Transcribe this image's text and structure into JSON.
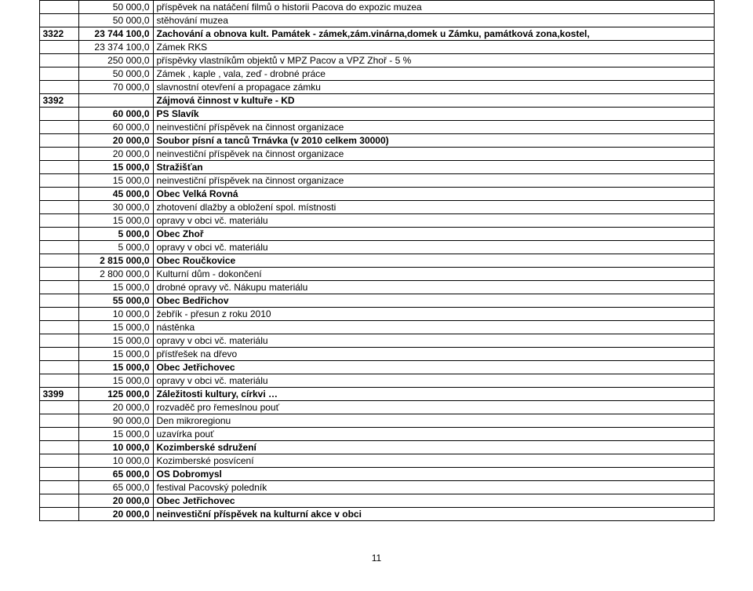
{
  "rows": [
    {
      "a": "",
      "b": "50 000,0",
      "c": "příspěvek na natáčení filmů o historii Pacova do expozic muzea",
      "bold": false
    },
    {
      "a": "",
      "b": "50 000,0",
      "c": "stěhování muzea",
      "bold": false
    },
    {
      "a": "3322",
      "b": "23 744 100,0",
      "c": "Zachování a obnova kult. Památek - zámek,zám.vinárna,domek u Zámku, památková zona,kostel,",
      "bold": true
    },
    {
      "a": "",
      "b": "23 374 100,0",
      "c": "Zámek RKS",
      "bold": false
    },
    {
      "a": "",
      "b": "250 000,0",
      "c": "příspěvky vlastníkům objektů v MPZ Pacov a VPZ Zhoř - 5 %",
      "bold": false
    },
    {
      "a": "",
      "b": "50 000,0",
      "c": "Zámek , kaple , vala, zeď - drobné práce",
      "bold": false
    },
    {
      "a": "",
      "b": "70 000,0",
      "c": "slavnostní otevření a propagace zámku",
      "bold": false
    },
    {
      "a": "3392",
      "b": "",
      "c": "Zájmová činnost v kultuře - KD",
      "bold": true
    },
    {
      "a": "",
      "b": "60 000,0",
      "c": "PS Slavík",
      "bold": true
    },
    {
      "a": "",
      "b": "60 000,0",
      "c": "neinvestiční příspěvek na činnost organizace",
      "bold": false
    },
    {
      "a": "",
      "b": "20 000,0",
      "c": "Soubor písní a tanců Trnávka (v 2010 celkem 30000)",
      "bold": true
    },
    {
      "a": "",
      "b": "20 000,0",
      "c": "neinvestiční příspěvek na činnost organizace",
      "bold": false
    },
    {
      "a": "",
      "b": "15 000,0",
      "c": "Stražišťan",
      "bold": true
    },
    {
      "a": "",
      "b": "15 000,0",
      "c": "neinvestiční příspěvek na činnost organizace",
      "bold": false
    },
    {
      "a": "",
      "b": "45 000,0",
      "c": "Obec Velká Rovná",
      "bold": true
    },
    {
      "a": "",
      "b": "30 000,0",
      "c": "zhotovení dlažby a obložení spol. místnosti",
      "bold": false
    },
    {
      "a": "",
      "b": "15 000,0",
      "c": "opravy v obci vč. materiálu",
      "bold": false
    },
    {
      "a": "",
      "b": "5 000,0",
      "c": "Obec Zhoř",
      "bold": true
    },
    {
      "a": "",
      "b": "5 000,0",
      "c": "opravy v obci vč. materiálu",
      "bold": false
    },
    {
      "a": "",
      "b": "2 815 000,0",
      "c": "Obec Roučkovice",
      "bold": true
    },
    {
      "a": "",
      "b": "2 800 000,0",
      "c": "Kulturní dům - dokončení",
      "bold": false
    },
    {
      "a": "",
      "b": "15 000,0",
      "c": "drobné opravy vč. Nákupu materiálu",
      "bold": false
    },
    {
      "a": "",
      "b": "55 000,0",
      "c": "Obec Bedřichov",
      "bold": true
    },
    {
      "a": "",
      "b": "10 000,0",
      "c": "žebřík - přesun z roku 2010",
      "bold": false
    },
    {
      "a": "",
      "b": "15 000,0",
      "c": "nástěnka",
      "bold": false
    },
    {
      "a": "",
      "b": "15 000,0",
      "c": "opravy v obci vč. materiálu",
      "bold": false
    },
    {
      "a": "",
      "b": "15 000,0",
      "c": "přístřešek na dřevo",
      "bold": false
    },
    {
      "a": "",
      "b": "15 000,0",
      "c": "Obec Jetřichovec",
      "bold": true
    },
    {
      "a": "",
      "b": "15 000,0",
      "c": "opravy v obci vč. materiálu",
      "bold": false
    },
    {
      "a": "3399",
      "b": "125 000,0",
      "c": "Záležitosti kultury, církvi …",
      "bold": true
    },
    {
      "a": "",
      "b": "20 000,0",
      "c": "rozvaděč pro řemeslnou pouť",
      "bold": false
    },
    {
      "a": "",
      "b": "90 000,0",
      "c": "Den mikroregionu",
      "bold": false
    },
    {
      "a": "",
      "b": "15 000,0",
      "c": "uzavírka pouť",
      "bold": false
    },
    {
      "a": "",
      "b": "10 000,0",
      "c": "Kozimberské sdružení",
      "bold": true
    },
    {
      "a": "",
      "b": "10 000,0",
      "c": "Kozimberské posvícení",
      "bold": false
    },
    {
      "a": "",
      "b": "65 000,0",
      "c": "OS Dobromysl",
      "bold": true
    },
    {
      "a": "",
      "b": "65 000,0",
      "c": "festival Pacovský poledník",
      "bold": false
    },
    {
      "a": "",
      "b": "20 000,0",
      "c": "Obec Jetřichovec",
      "bold": true
    },
    {
      "a": "",
      "b": "20 000,0",
      "c": "neinvestiční příspěvek na kulturní akce v obci",
      "bold": true
    }
  ],
  "pageNumber": "11"
}
